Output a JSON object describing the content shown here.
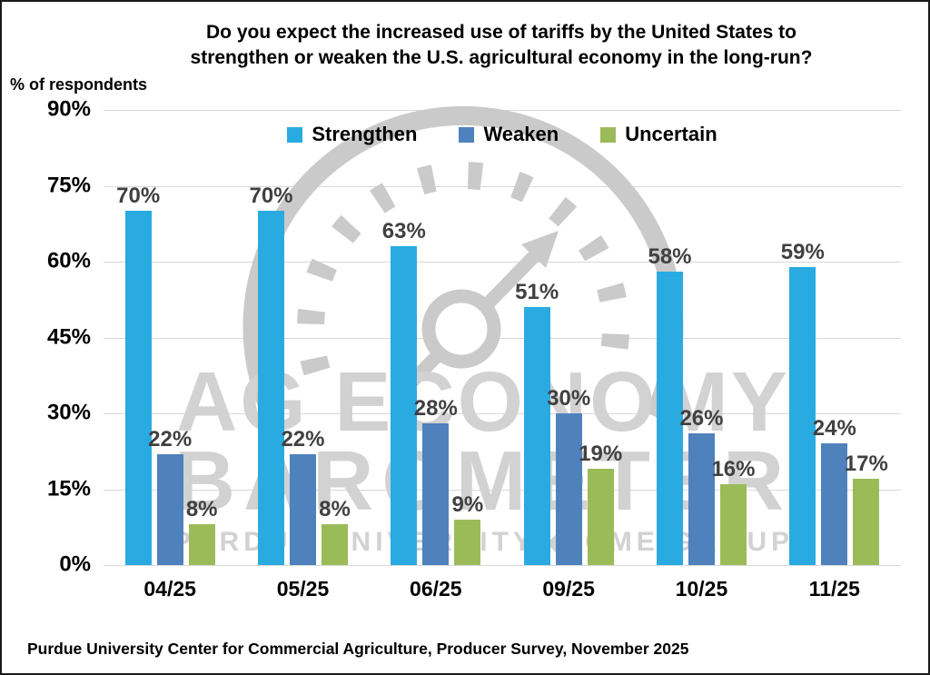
{
  "page": {
    "title": "Do you expect the increased use of tariffs by the United States to\nstrengthen or weaken the U.S. agricultural economy in the long-run?",
    "y_axis_label": "% of respondents",
    "footer": "Purdue University Center for Commercial Agriculture, Producer Survey, November 2025"
  },
  "watermark": {
    "line1": "AG ECONOMY",
    "line2": "BAROMETER",
    "line3": "PURDUE UNIVERSITY ◆ CME GROUP",
    "text_color": "#D2D2D2",
    "gauge_color": "#CACACA"
  },
  "chart_data": {
    "type": "bar",
    "title": "Do you expect the increased use of tariffs by the United States to strengthen or weaken the U.S. agricultural economy in the long-run?",
    "xlabel": "",
    "ylabel": "% of respondents",
    "categories": [
      "04/25",
      "05/25",
      "06/25",
      "09/25",
      "10/25",
      "11/25"
    ],
    "series": [
      {
        "name": "Strengthen",
        "color": "#29ABE2",
        "values": [
          70,
          70,
          63,
          51,
          58,
          59
        ]
      },
      {
        "name": "Weaken",
        "color": "#4F81BD",
        "values": [
          22,
          22,
          28,
          30,
          26,
          24
        ]
      },
      {
        "name": "Uncertain",
        "color": "#9BBB59",
        "values": [
          8,
          8,
          9,
          19,
          16,
          17
        ]
      }
    ],
    "data_label_format": "{value}%",
    "ylim": [
      0,
      90
    ],
    "ytick_step": 15,
    "yticks": [
      "90%",
      "75%",
      "60%",
      "45%",
      "30%",
      "15%",
      "0%"
    ],
    "grid": true,
    "gridline_color": "#D9D9D9",
    "data_label_color": "#404040",
    "legend_position": "top-center"
  }
}
